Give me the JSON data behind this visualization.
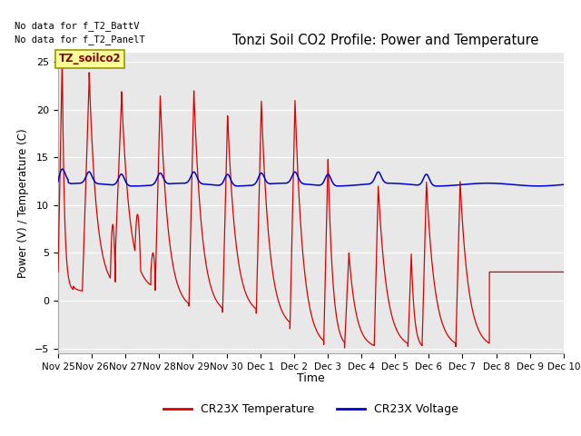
{
  "title": "Tonzi Soil CO2 Profile: Power and Temperature",
  "ylabel": "Power (V) / Temperature (C)",
  "xlabel": "Time",
  "no_data_text1": "No data for f_T2_BattV",
  "no_data_text2": "No data for f_T2_PanelT",
  "label_box": "TZ_soilco2",
  "ylim": [
    -5.5,
    26
  ],
  "yticks": [
    -5,
    0,
    5,
    10,
    15,
    20,
    25
  ],
  "legend_temp": "CR23X Temperature",
  "legend_volt": "CR23X Voltage",
  "temp_color": "#dd0000",
  "volt_color": "#0000cc",
  "bg_color": "#e8e8e8",
  "tick_labels": [
    "Nov 25",
    "Nov 26",
    "Nov 27",
    "Nov 28",
    "Nov 29",
    "Nov 30",
    "Dec 1",
    "Dec 2",
    "Dec 3",
    "Dec 4",
    "Dec 5",
    "Dec 6",
    "Dec 7",
    "Dec 8",
    "Dec 9",
    "Dec 10"
  ]
}
